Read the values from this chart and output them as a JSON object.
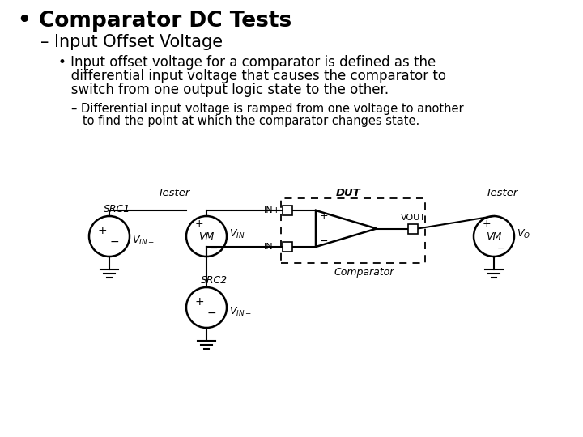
{
  "bg": "#ffffff",
  "fg": "#000000",
  "title": "• Comparator DC Tests",
  "subtitle": "– Input Offset Voltage",
  "body_line1": "• Input offset voltage for a comparator is defined as the",
  "body_line2": "   differential input voltage that causes the comparator to",
  "body_line3": "   switch from one output logic state to the other.",
  "sub1": "– Differential input voltage is ramped from one voltage to another",
  "sub2": "   to find the point at which the comparator changes state.",
  "tester_left_label": "Tester",
  "tester_right_label": "Tester",
  "dut_label": "DUT",
  "src1_label": "SRC1",
  "src2_label": "SRC2",
  "vm_label": "VM",
  "vin_plus_label": "V_{IN+}",
  "vin_label": "V_{IN}",
  "vin_minus_label": "V_{IN-}",
  "vout_label": "VOUT",
  "vo_label": "V_O",
  "in_plus_label": "IN+",
  "in_minus_label": "IN−",
  "comparator_label": "Comparator"
}
